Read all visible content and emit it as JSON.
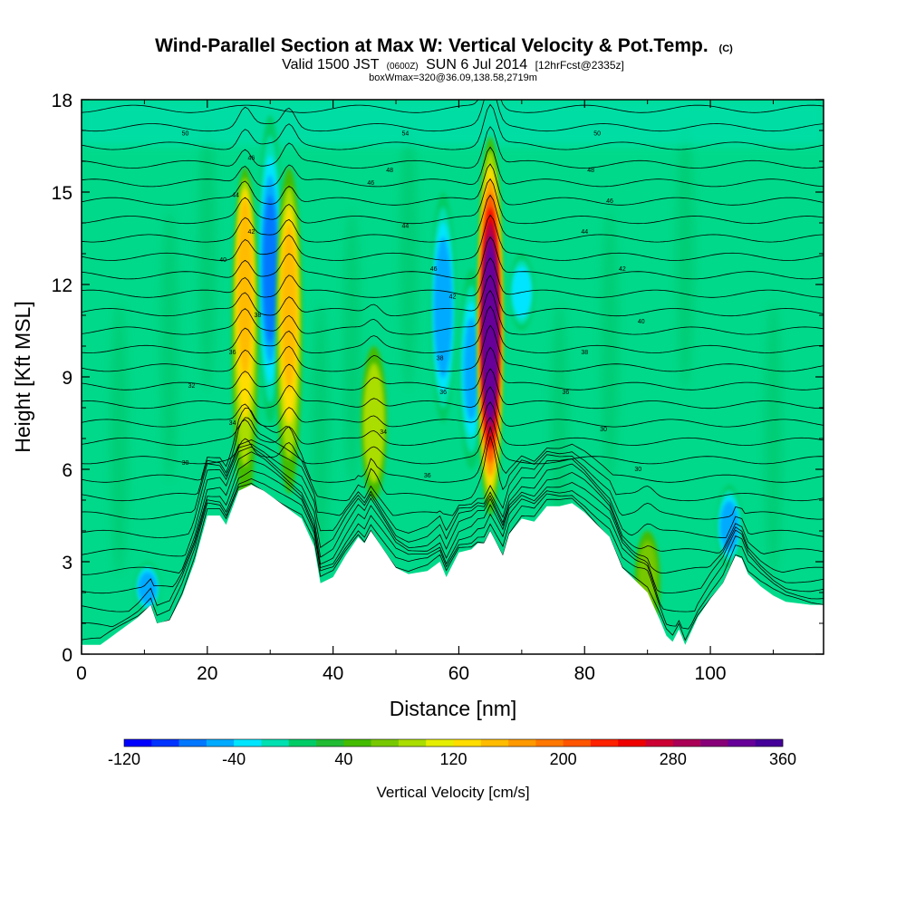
{
  "title": {
    "main": "Wind-Parallel Section at Max W: Vertical Velocity & Pot.Temp.",
    "copyright": "(C)",
    "valid_prefix": "Valid 1500 JST",
    "valid_utc": "(0600Z)",
    "valid_date": "SUN 6 Jul 2014",
    "forecast": "[12hrFcst@2335z]",
    "box_info": "boxWmax=320@36.09,138.58,2719m"
  },
  "colors": {
    "plot_background": "#00d98a",
    "terrain": "#ffffff",
    "contour": "#000000"
  },
  "chart_data": {
    "type": "heatmap",
    "xlabel": "Distance [nm]",
    "ylabel": "Height [Kft MSL]",
    "xlim": [
      0,
      118
    ],
    "ylim": [
      0,
      18
    ],
    "x_ticks": [
      "0",
      "20",
      "40",
      "60",
      "80",
      "100"
    ],
    "y_ticks": [
      "0",
      "3",
      "6",
      "9",
      "12",
      "15",
      "18"
    ],
    "colorbar": {
      "label": "Vertical Velocity [cm/s]",
      "min": -120,
      "max": 360,
      "step": 20,
      "tick_labels": [
        "-120",
        "-40",
        "40",
        "120",
        "200",
        "280",
        "360"
      ],
      "colors": [
        "#0000ff",
        "#0033ff",
        "#0077ff",
        "#00aaff",
        "#00e5ff",
        "#00e0b0",
        "#00cc66",
        "#22bb33",
        "#44bb00",
        "#77c800",
        "#aadd00",
        "#e5ee00",
        "#ffdd00",
        "#ffbb00",
        "#ff9900",
        "#ff7700",
        "#ff5500",
        "#ff2200",
        "#ee0000",
        "#cc0033",
        "#aa0055",
        "#880077",
        "#660099",
        "#440099"
      ]
    },
    "terrain_kft": {
      "x": [
        0,
        3,
        5,
        7,
        9,
        11,
        12,
        14,
        16,
        18,
        20,
        22,
        23,
        25,
        27,
        29,
        31,
        33,
        35,
        37,
        38,
        40,
        42,
        44,
        45,
        46,
        48,
        50,
        52,
        55,
        57,
        58,
        60,
        62,
        63,
        64,
        65,
        66,
        67,
        68,
        70,
        72,
        74,
        76,
        78,
        80,
        82,
        84,
        86,
        88,
        90,
        92,
        93,
        94,
        95,
        96,
        98,
        100,
        102,
        104,
        105,
        106,
        108,
        110,
        112,
        116,
        118
      ],
      "height": [
        0.3,
        0.3,
        0.6,
        0.9,
        1.2,
        1.6,
        1.0,
        1.1,
        1.9,
        3.0,
        4.5,
        4.5,
        4.2,
        5.3,
        5.5,
        5.3,
        5.0,
        4.7,
        4.4,
        3.5,
        2.3,
        2.5,
        3.2,
        3.8,
        3.6,
        4.0,
        3.4,
        2.8,
        2.6,
        2.7,
        3.0,
        2.5,
        3.3,
        3.4,
        3.6,
        3.6,
        4.0,
        3.6,
        3.2,
        3.9,
        4.4,
        4.3,
        4.8,
        4.8,
        4.9,
        4.6,
        4.2,
        3.8,
        2.8,
        2.4,
        2.0,
        1.1,
        0.6,
        0.4,
        0.8,
        0.3,
        1.2,
        1.8,
        2.3,
        3.2,
        3.1,
        2.6,
        2.2,
        1.9,
        1.7,
        1.6,
        1.6
      ]
    },
    "updrafts_cm_s": [
      {
        "x": 26.0,
        "base_kft": 4.6,
        "top_kft": 15.8,
        "peak": 150,
        "peak_kft": 12.5
      },
      {
        "x": 33.0,
        "base_kft": 5.2,
        "top_kft": 15.8,
        "peak": 150,
        "peak_kft": 11.5
      },
      {
        "x": 46.5,
        "base_kft": 5.0,
        "top_kft": 10.0,
        "peak": 80,
        "peak_kft": 7.5
      },
      {
        "x": 65.0,
        "base_kft": 4.5,
        "top_kft": 16.8,
        "peak": 320,
        "peak_kft": 10.5
      },
      {
        "x": 90.0,
        "base_kft": 0.6,
        "top_kft": 4.0,
        "peak": 70,
        "peak_kft": 2.8
      }
    ],
    "downdrafts_cm_s": [
      {
        "x": 10.5,
        "base_kft": 1.3,
        "top_kft": 3.0,
        "peak": -60
      },
      {
        "x": 30.0,
        "base_kft": 7.5,
        "top_kft": 17.5,
        "peak": -70
      },
      {
        "x": 57.5,
        "base_kft": 7.5,
        "top_kft": 15.0,
        "peak": -60
      },
      {
        "x": 62.0,
        "base_kft": 6.0,
        "top_kft": 12.5,
        "peak": -50
      },
      {
        "x": 70.0,
        "base_kft": 10.5,
        "top_kft": 13.0,
        "peak": -40
      },
      {
        "x": 103.0,
        "base_kft": 2.8,
        "top_kft": 5.5,
        "peak": -60
      }
    ],
    "theta_contour_labels": [
      {
        "text": "30",
        "x": 16.5,
        "y": 6.2
      },
      {
        "text": "32",
        "x": 17.5,
        "y": 8.7
      },
      {
        "text": "34",
        "x": 24,
        "y": 7.5
      },
      {
        "text": "36",
        "x": 24,
        "y": 9.8
      },
      {
        "text": "38",
        "x": 28,
        "y": 11.0
      },
      {
        "text": "40",
        "x": 22.5,
        "y": 12.8
      },
      {
        "text": "42",
        "x": 27,
        "y": 13.7
      },
      {
        "text": "44",
        "x": 24.5,
        "y": 14.9
      },
      {
        "text": "46",
        "x": 27,
        "y": 16.1
      },
      {
        "text": "50",
        "x": 16.5,
        "y": 16.9
      },
      {
        "text": "34",
        "x": 48,
        "y": 7.2
      },
      {
        "text": "46",
        "x": 46,
        "y": 15.3
      },
      {
        "text": "48",
        "x": 49,
        "y": 15.7
      },
      {
        "text": "44",
        "x": 51.5,
        "y": 13.9
      },
      {
        "text": "54",
        "x": 51.5,
        "y": 16.9
      },
      {
        "text": "36",
        "x": 55,
        "y": 5.8
      },
      {
        "text": "36",
        "x": 57.5,
        "y": 8.5
      },
      {
        "text": "38",
        "x": 57,
        "y": 9.6
      },
      {
        "text": "42",
        "x": 59,
        "y": 11.6
      },
      {
        "text": "46",
        "x": 56,
        "y": 12.5
      },
      {
        "text": "50",
        "x": 82,
        "y": 16.9
      },
      {
        "text": "48",
        "x": 81,
        "y": 15.7
      },
      {
        "text": "46",
        "x": 84,
        "y": 14.7
      },
      {
        "text": "44",
        "x": 80,
        "y": 13.7
      },
      {
        "text": "42",
        "x": 86,
        "y": 12.5
      },
      {
        "text": "40",
        "x": 89,
        "y": 10.8
      },
      {
        "text": "38",
        "x": 80,
        "y": 9.8
      },
      {
        "text": "36",
        "x": 77,
        "y": 8.5
      },
      {
        "text": "30",
        "x": 83,
        "y": 7.3
      },
      {
        "text": "30",
        "x": 88.5,
        "y": 6.0
      }
    ]
  }
}
